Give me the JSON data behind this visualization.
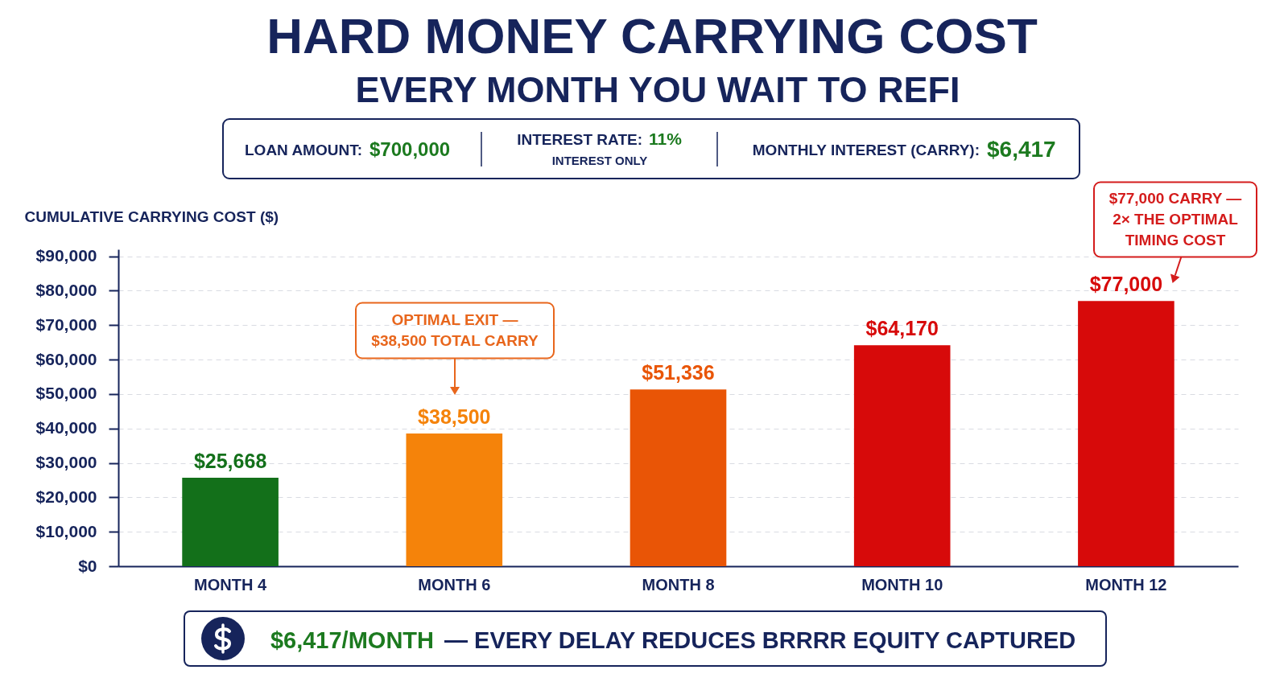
{
  "chart_data": {
    "type": "bar",
    "title": "HARD MONEY CARRYING COST",
    "subtitle": "EVERY MONTH YOU WAIT TO REFI",
    "ylabel": "CUMULATIVE CARRYING COST ($)",
    "categories": [
      "MONTH 4",
      "MONTH 6",
      "MONTH 8",
      "MONTH 10",
      "MONTH 12"
    ],
    "values": [
      25668,
      38500,
      51336,
      64170,
      77000
    ],
    "colors": [
      "#13701a",
      "#f5830a",
      "#e95506",
      "#d70a0a",
      "#d70a0a"
    ],
    "value_labels": [
      "$25,668",
      "$38,500",
      "$51,336",
      "$64,170",
      "$77,000"
    ],
    "ylim": [
      0,
      92000
    ],
    "yticks": [
      {
        "value": 0,
        "label": "$0"
      },
      {
        "value": 10000,
        "label": "$10,000"
      },
      {
        "value": 20000,
        "label": "$20,000"
      },
      {
        "value": 30000,
        "label": "$30,000"
      },
      {
        "value": 40000,
        "label": "$40,000"
      },
      {
        "value": 50000,
        "label": "$50,000"
      },
      {
        "value": 60000,
        "label": "$60,000"
      },
      {
        "value": 70000,
        "label": "$70,000"
      },
      {
        "value": 80000,
        "label": "$80,000"
      },
      {
        "value": 90000,
        "label": "$90,000"
      }
    ],
    "grid": "y",
    "annotations": [
      "LOAN AMOUNT:",
      "$700,000",
      "INTEREST RATE:",
      "11%",
      "INTEREST ONLY",
      "MONTHLY INTEREST (CARRY):",
      "$6,417",
      "OPTIMAL EXIT — $38,500 TOTAL CARRY",
      "$77,000 CARRY — 2× THE OPTIMAL TIMING COST",
      "$6,417/MONTH",
      "— EVERY DELAY REDUCES BRRRR EQUITY CAPTURED"
    ]
  }
}
